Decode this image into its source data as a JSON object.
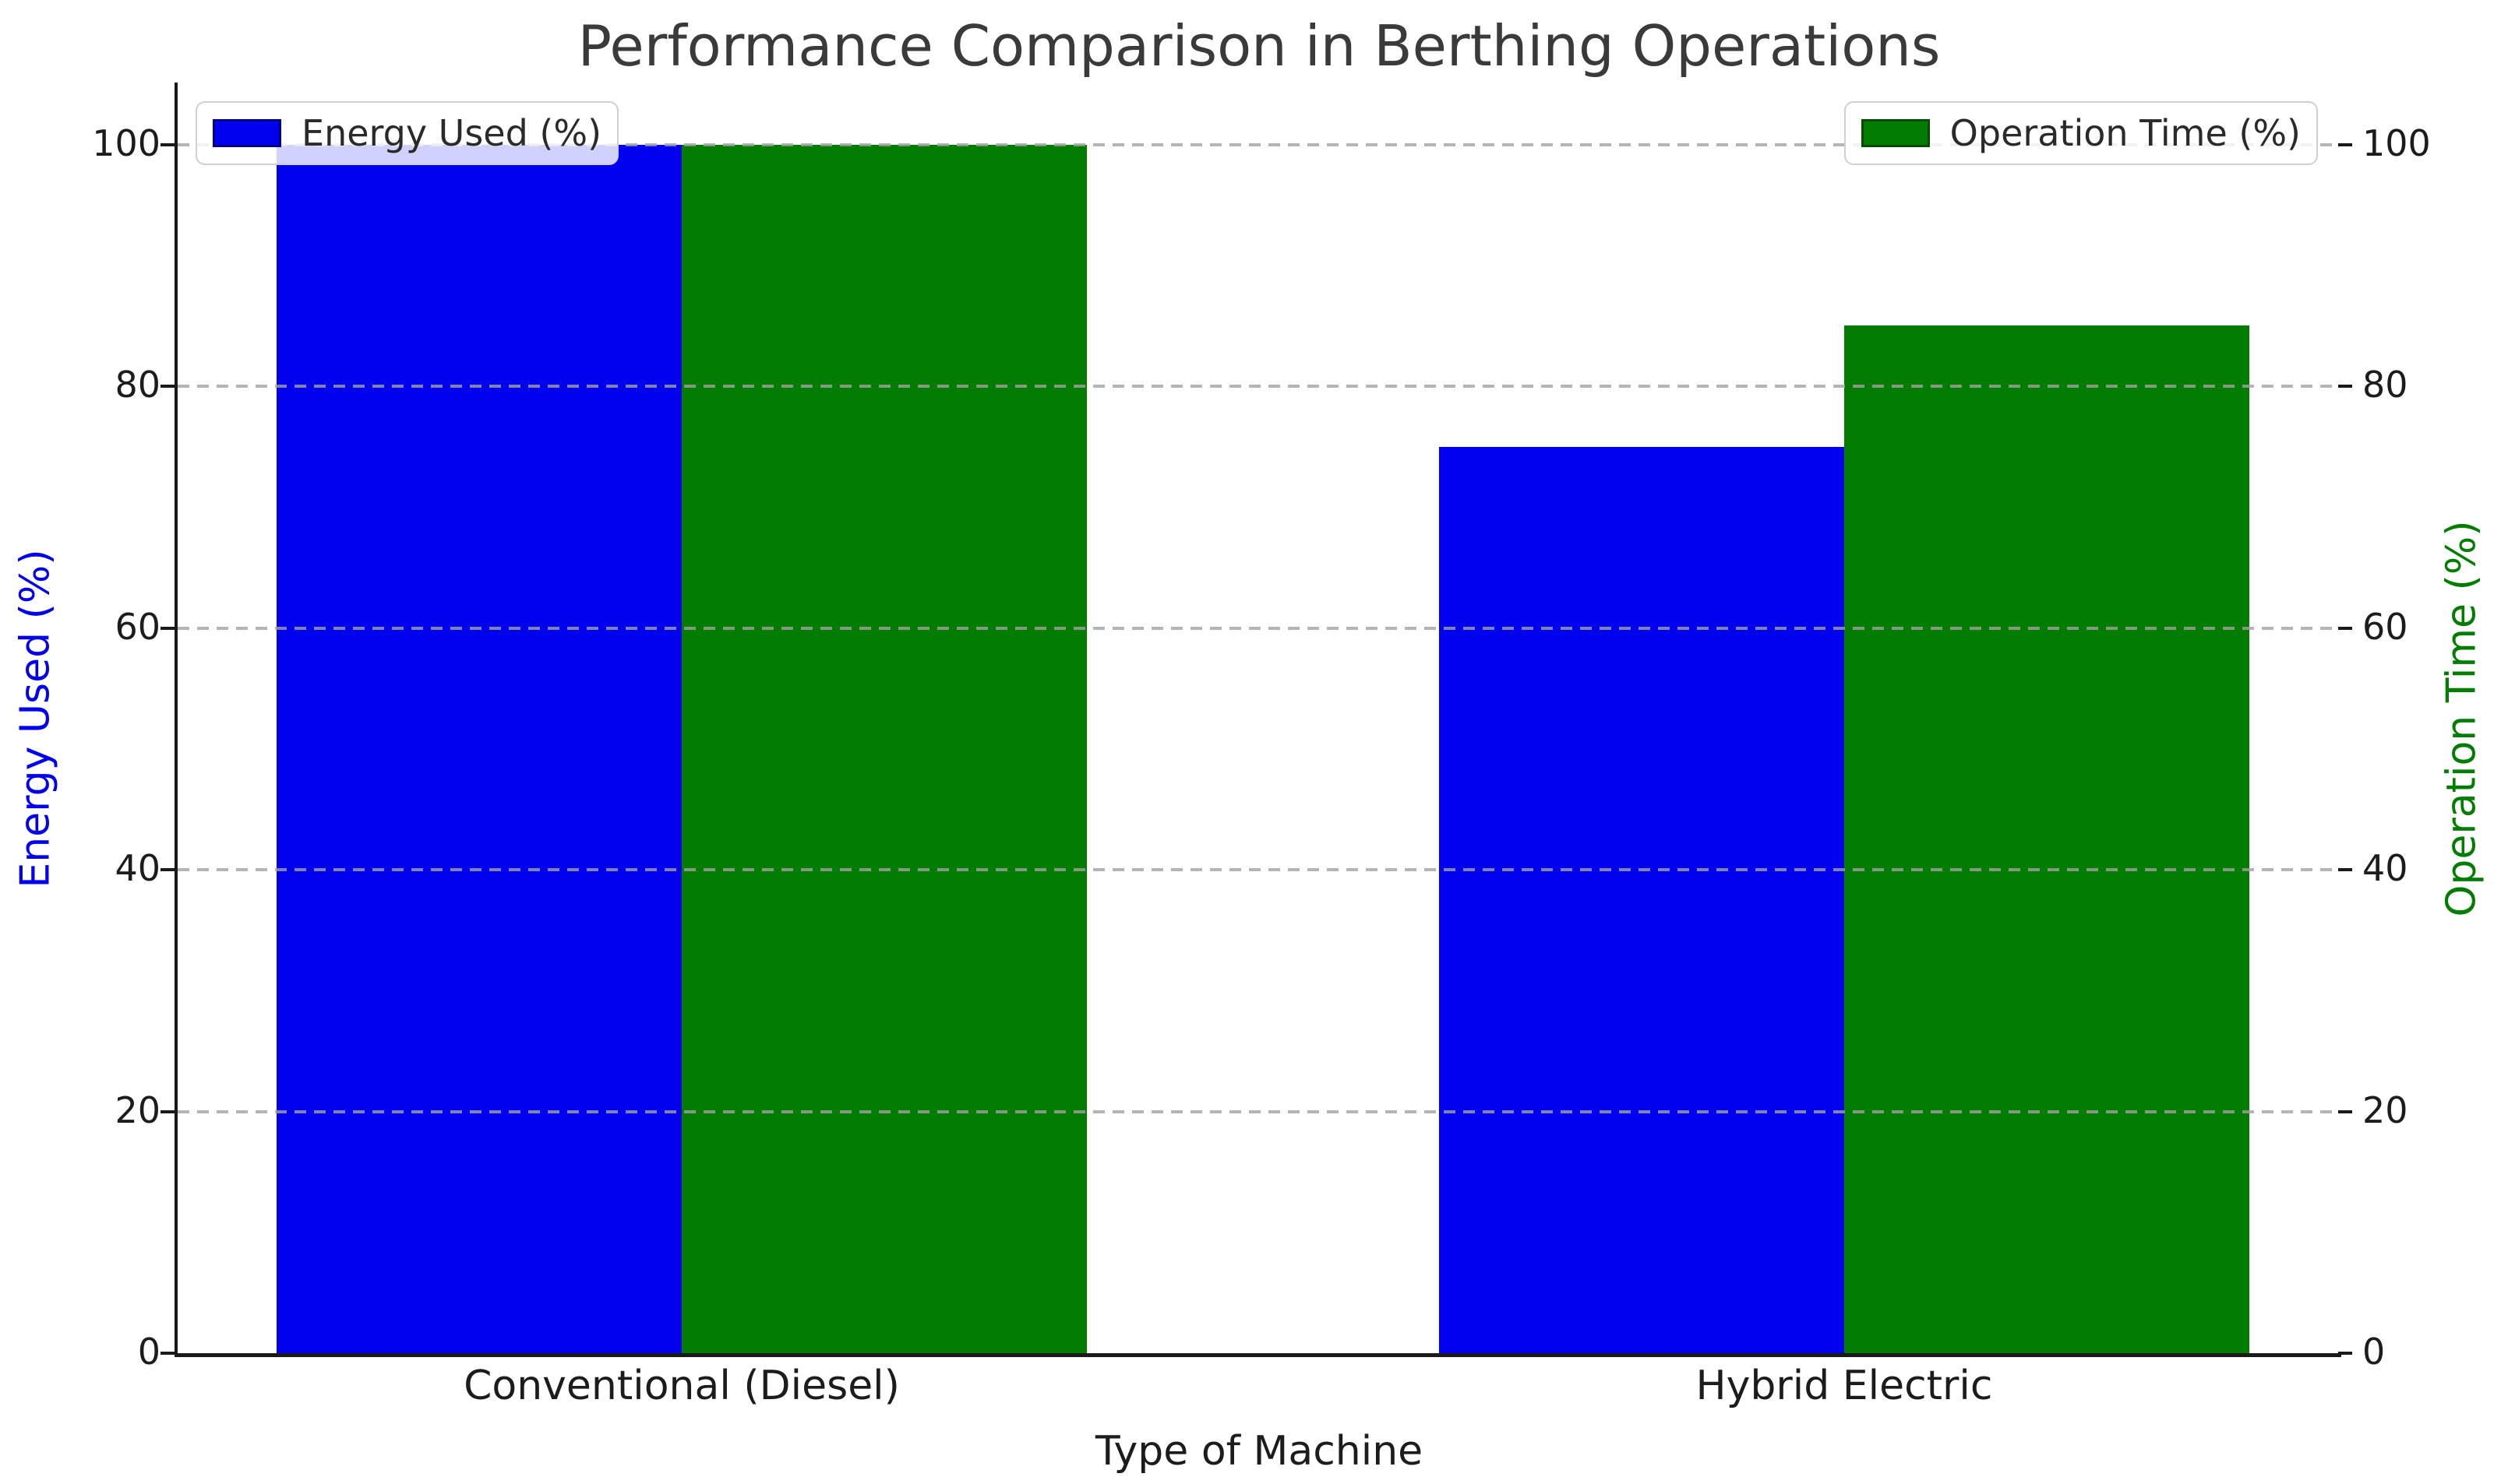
{
  "chart_data": {
    "type": "bar",
    "title": "Performance Comparison in Berthing Operations",
    "xlabel": "Type of Machine",
    "ylabel_left": "Energy Used (%)",
    "ylabel_right": "Operation Time (%)",
    "categories": [
      "Conventional (Diesel)",
      "Hybrid Electric"
    ],
    "series": [
      {
        "name": "Energy Used (%)",
        "axis": "left",
        "color": "#0101f0",
        "edge_color": "#00008b",
        "values": [
          100,
          75
        ]
      },
      {
        "name": "Operation Time (%)",
        "axis": "right",
        "color": "#027d02",
        "edge_color": "#004d00",
        "values": [
          100,
          85
        ]
      }
    ],
    "yticks_left": [
      0,
      20,
      40,
      60,
      80,
      100
    ],
    "yticks_right": [
      0,
      20,
      40,
      60,
      80,
      100
    ],
    "ylim": [
      0,
      105
    ],
    "grid": {
      "axis": "y",
      "style": "dashed",
      "color": "#b4b4b4",
      "drawn_above_bars": true
    },
    "legend": [
      {
        "label": "Energy Used (%)",
        "position": "upper left"
      },
      {
        "label": "Operation Time (%)",
        "position": "upper right"
      }
    ],
    "background": "#ffffff",
    "title_color": "#3a3a3a",
    "tick_color": "#1c1c1c"
  }
}
